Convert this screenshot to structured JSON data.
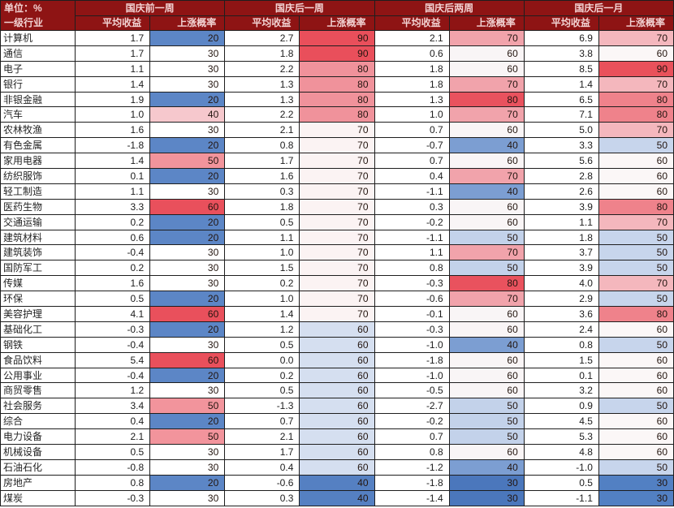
{
  "chart_data": {
    "type": "table",
    "unit_label": "单位：%",
    "row_header": "一级行业",
    "column_groups": [
      "国庆前一周",
      "国庆后一周",
      "国庆后两周",
      "国庆后一月"
    ],
    "sub_columns": [
      "平均收益",
      "上涨概率"
    ],
    "colors": {
      "header_bg": "#8E1414",
      "header_text": "#F2D3D3",
      "grid_border": "#1e1e1e"
    },
    "prob_color_scales": {
      "p1": {
        "20": "#5C86C6",
        "30": "#FFFFFF",
        "40": "#F6C8CD",
        "50": "#F2949C",
        "60": "#E9505C"
      },
      "p2": {
        "40": "#5580C2",
        "60": "#D5DFF0",
        "70": "#FBF3F3",
        "80": "#F0929B",
        "90": "#E94F5B"
      },
      "p3": {
        "30": "#4B77BC",
        "40": "#7C9ED2",
        "50": "#C3D2EA",
        "60": "#F9F5F6",
        "70": "#F1A3AB",
        "80": "#E9525E"
      },
      "p4": {
        "30": "#5280C3",
        "50": "#C7D5EC",
        "60": "#FBF7F7",
        "70": "#F4B7BD",
        "80": "#EF828B",
        "90": "#E9515B"
      }
    },
    "rows": [
      {
        "industry": "计算机",
        "cells": [
          "1.7",
          "20",
          "2.7",
          "90",
          "2.1",
          "70",
          "6.9",
          "70"
        ]
      },
      {
        "industry": "通信",
        "cells": [
          "1.7",
          "30",
          "1.8",
          "90",
          "0.6",
          "60",
          "3.8",
          "60"
        ]
      },
      {
        "industry": "电子",
        "cells": [
          "1.1",
          "30",
          "2.2",
          "80",
          "1.8",
          "60",
          "8.5",
          "90"
        ]
      },
      {
        "industry": "银行",
        "cells": [
          "1.4",
          "30",
          "1.3",
          "80",
          "1.8",
          "70",
          "1.4",
          "70"
        ]
      },
      {
        "industry": "非银金融",
        "cells": [
          "1.9",
          "20",
          "1.3",
          "80",
          "1.3",
          "80",
          "6.5",
          "80"
        ]
      },
      {
        "industry": "汽车",
        "cells": [
          "1.0",
          "40",
          "2.2",
          "80",
          "1.0",
          "70",
          "7.1",
          "80"
        ]
      },
      {
        "industry": "农林牧渔",
        "cells": [
          "1.6",
          "30",
          "2.1",
          "70",
          "0.7",
          "60",
          "5.0",
          "70"
        ]
      },
      {
        "industry": "有色金属",
        "cells": [
          "-1.8",
          "20",
          "0.8",
          "70",
          "-0.7",
          "40",
          "3.3",
          "50"
        ]
      },
      {
        "industry": "家用电器",
        "cells": [
          "1.4",
          "50",
          "1.7",
          "70",
          "0.7",
          "60",
          "5.6",
          "60"
        ]
      },
      {
        "industry": "纺织服饰",
        "cells": [
          "0.1",
          "20",
          "1.6",
          "70",
          "0.4",
          "70",
          "2.8",
          "60"
        ]
      },
      {
        "industry": "轻工制造",
        "cells": [
          "1.1",
          "30",
          "0.3",
          "70",
          "-1.1",
          "40",
          "2.6",
          "60"
        ]
      },
      {
        "industry": "医药生物",
        "cells": [
          "3.3",
          "60",
          "1.8",
          "70",
          "0.3",
          "60",
          "3.9",
          "80"
        ]
      },
      {
        "industry": "交通运输",
        "cells": [
          "0.2",
          "20",
          "0.5",
          "70",
          "-0.2",
          "60",
          "1.1",
          "70"
        ]
      },
      {
        "industry": "建筑材料",
        "cells": [
          "0.6",
          "20",
          "1.1",
          "70",
          "-1.1",
          "50",
          "1.8",
          "50"
        ]
      },
      {
        "industry": "建筑装饰",
        "cells": [
          "-0.4",
          "30",
          "1.0",
          "70",
          "1.1",
          "70",
          "3.7",
          "50"
        ]
      },
      {
        "industry": "国防军工",
        "cells": [
          "0.2",
          "30",
          "1.5",
          "70",
          "0.8",
          "50",
          "3.9",
          "50"
        ]
      },
      {
        "industry": "传媒",
        "cells": [
          "1.6",
          "30",
          "0.2",
          "70",
          "-0.3",
          "80",
          "4.0",
          "70"
        ]
      },
      {
        "industry": "环保",
        "cells": [
          "0.5",
          "20",
          "1.0",
          "70",
          "-0.6",
          "70",
          "2.9",
          "50"
        ]
      },
      {
        "industry": "美容护理",
        "cells": [
          "4.1",
          "60",
          "1.4",
          "70",
          "-0.1",
          "60",
          "3.6",
          "80"
        ]
      },
      {
        "industry": "基础化工",
        "cells": [
          "-0.3",
          "20",
          "1.2",
          "60",
          "-0.3",
          "60",
          "2.4",
          "60"
        ]
      },
      {
        "industry": "钢铁",
        "cells": [
          "-0.4",
          "30",
          "0.5",
          "60",
          "-1.0",
          "40",
          "0.8",
          "50"
        ]
      },
      {
        "industry": "食品饮料",
        "cells": [
          "5.4",
          "60",
          "0.0",
          "60",
          "-1.8",
          "60",
          "1.5",
          "60"
        ]
      },
      {
        "industry": "公用事业",
        "cells": [
          "-0.4",
          "20",
          "0.2",
          "60",
          "-1.0",
          "60",
          "0.1",
          "60"
        ]
      },
      {
        "industry": "商贸零售",
        "cells": [
          "1.2",
          "30",
          "0.5",
          "60",
          "-0.5",
          "60",
          "3.2",
          "60"
        ]
      },
      {
        "industry": "社会服务",
        "cells": [
          "3.4",
          "50",
          "-1.3",
          "60",
          "-2.7",
          "50",
          "0.9",
          "50"
        ]
      },
      {
        "industry": "综合",
        "cells": [
          "0.4",
          "20",
          "0.7",
          "60",
          "-0.2",
          "50",
          "4.5",
          "60"
        ]
      },
      {
        "industry": "电力设备",
        "cells": [
          "2.1",
          "50",
          "2.1",
          "60",
          "0.7",
          "50",
          "5.3",
          "60"
        ]
      },
      {
        "industry": "机械设备",
        "cells": [
          "0.5",
          "30",
          "1.7",
          "60",
          "0.8",
          "60",
          "4.8",
          "60"
        ]
      },
      {
        "industry": "石油石化",
        "cells": [
          "-0.8",
          "30",
          "0.4",
          "60",
          "-1.2",
          "40",
          "-1.0",
          "50"
        ]
      },
      {
        "industry": "房地产",
        "cells": [
          "0.8",
          "20",
          "-0.6",
          "40",
          "-1.8",
          "30",
          "0.5",
          "30"
        ]
      },
      {
        "industry": "煤炭",
        "cells": [
          "-0.3",
          "30",
          "0.3",
          "40",
          "-1.4",
          "30",
          "-1.1",
          "30"
        ]
      }
    ]
  }
}
